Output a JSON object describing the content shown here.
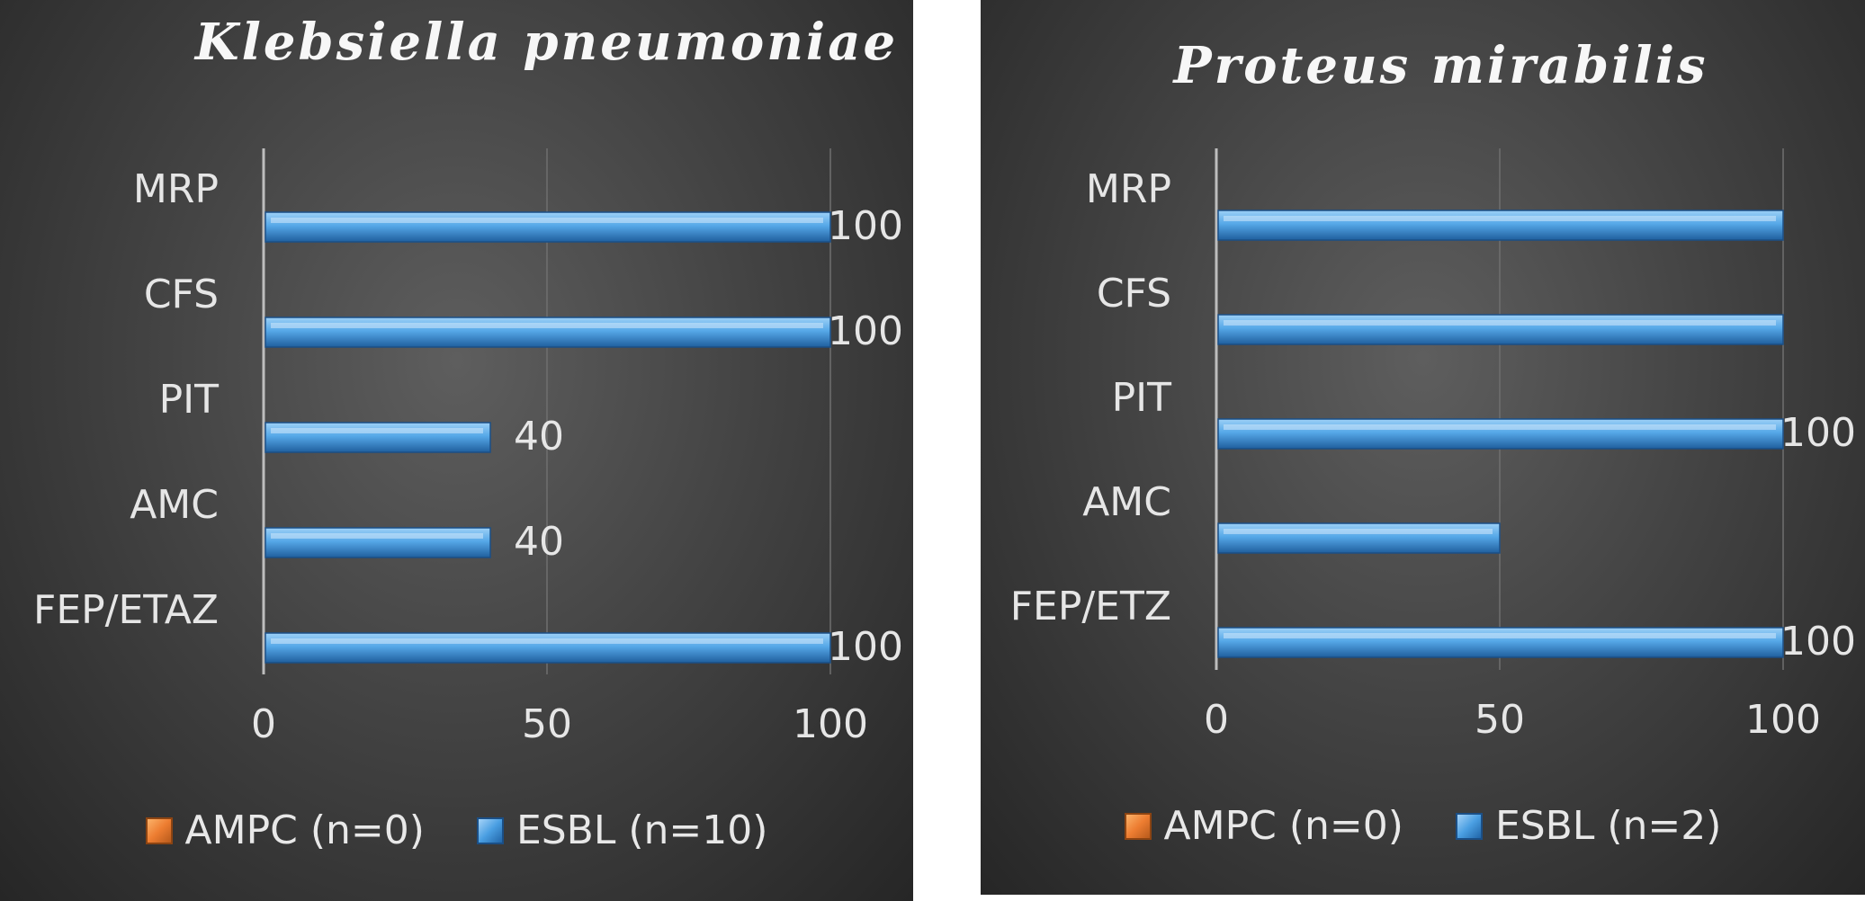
{
  "chart_data": [
    {
      "type": "bar",
      "orientation": "horizontal",
      "title": "Klebsiella pneumoniae",
      "categories": [
        "MRP",
        "CFS",
        "PIT",
        "AMC",
        "FEP/ETAZ"
      ],
      "series": [
        {
          "name": "AMPC (n=0)",
          "color": "#ed7d31",
          "values": [
            0,
            0,
            0,
            0,
            0
          ]
        },
        {
          "name": "ESBL (n=10)",
          "color": "#4a9fe2",
          "values": [
            100,
            100,
            40,
            40,
            100
          ]
        }
      ],
      "data_labels": [
        "100",
        "100",
        "40",
        "40",
        "100"
      ],
      "xlim": [
        0,
        100
      ],
      "xticks": [
        "0",
        "50",
        "100"
      ],
      "grid": true,
      "legend": "bottom"
    },
    {
      "type": "bar",
      "orientation": "horizontal",
      "title": "Proteus mirabilis",
      "categories": [
        "MRP",
        "CFS",
        "PIT",
        "AMC",
        "FEP/ETZ"
      ],
      "series": [
        {
          "name": "AMPC (n=0)",
          "color": "#ed7d31",
          "values": [
            0,
            0,
            0,
            0,
            0
          ]
        },
        {
          "name": "ESBL (n=2)",
          "color": "#4a9fe2",
          "values": [
            100,
            100,
            100,
            50,
            100
          ]
        }
      ],
      "data_labels": [
        "",
        "",
        "100",
        "",
        "100"
      ],
      "xlim": [
        0,
        100
      ],
      "xticks": [
        "0",
        "50",
        "100"
      ],
      "grid": true,
      "legend": "bottom"
    }
  ]
}
